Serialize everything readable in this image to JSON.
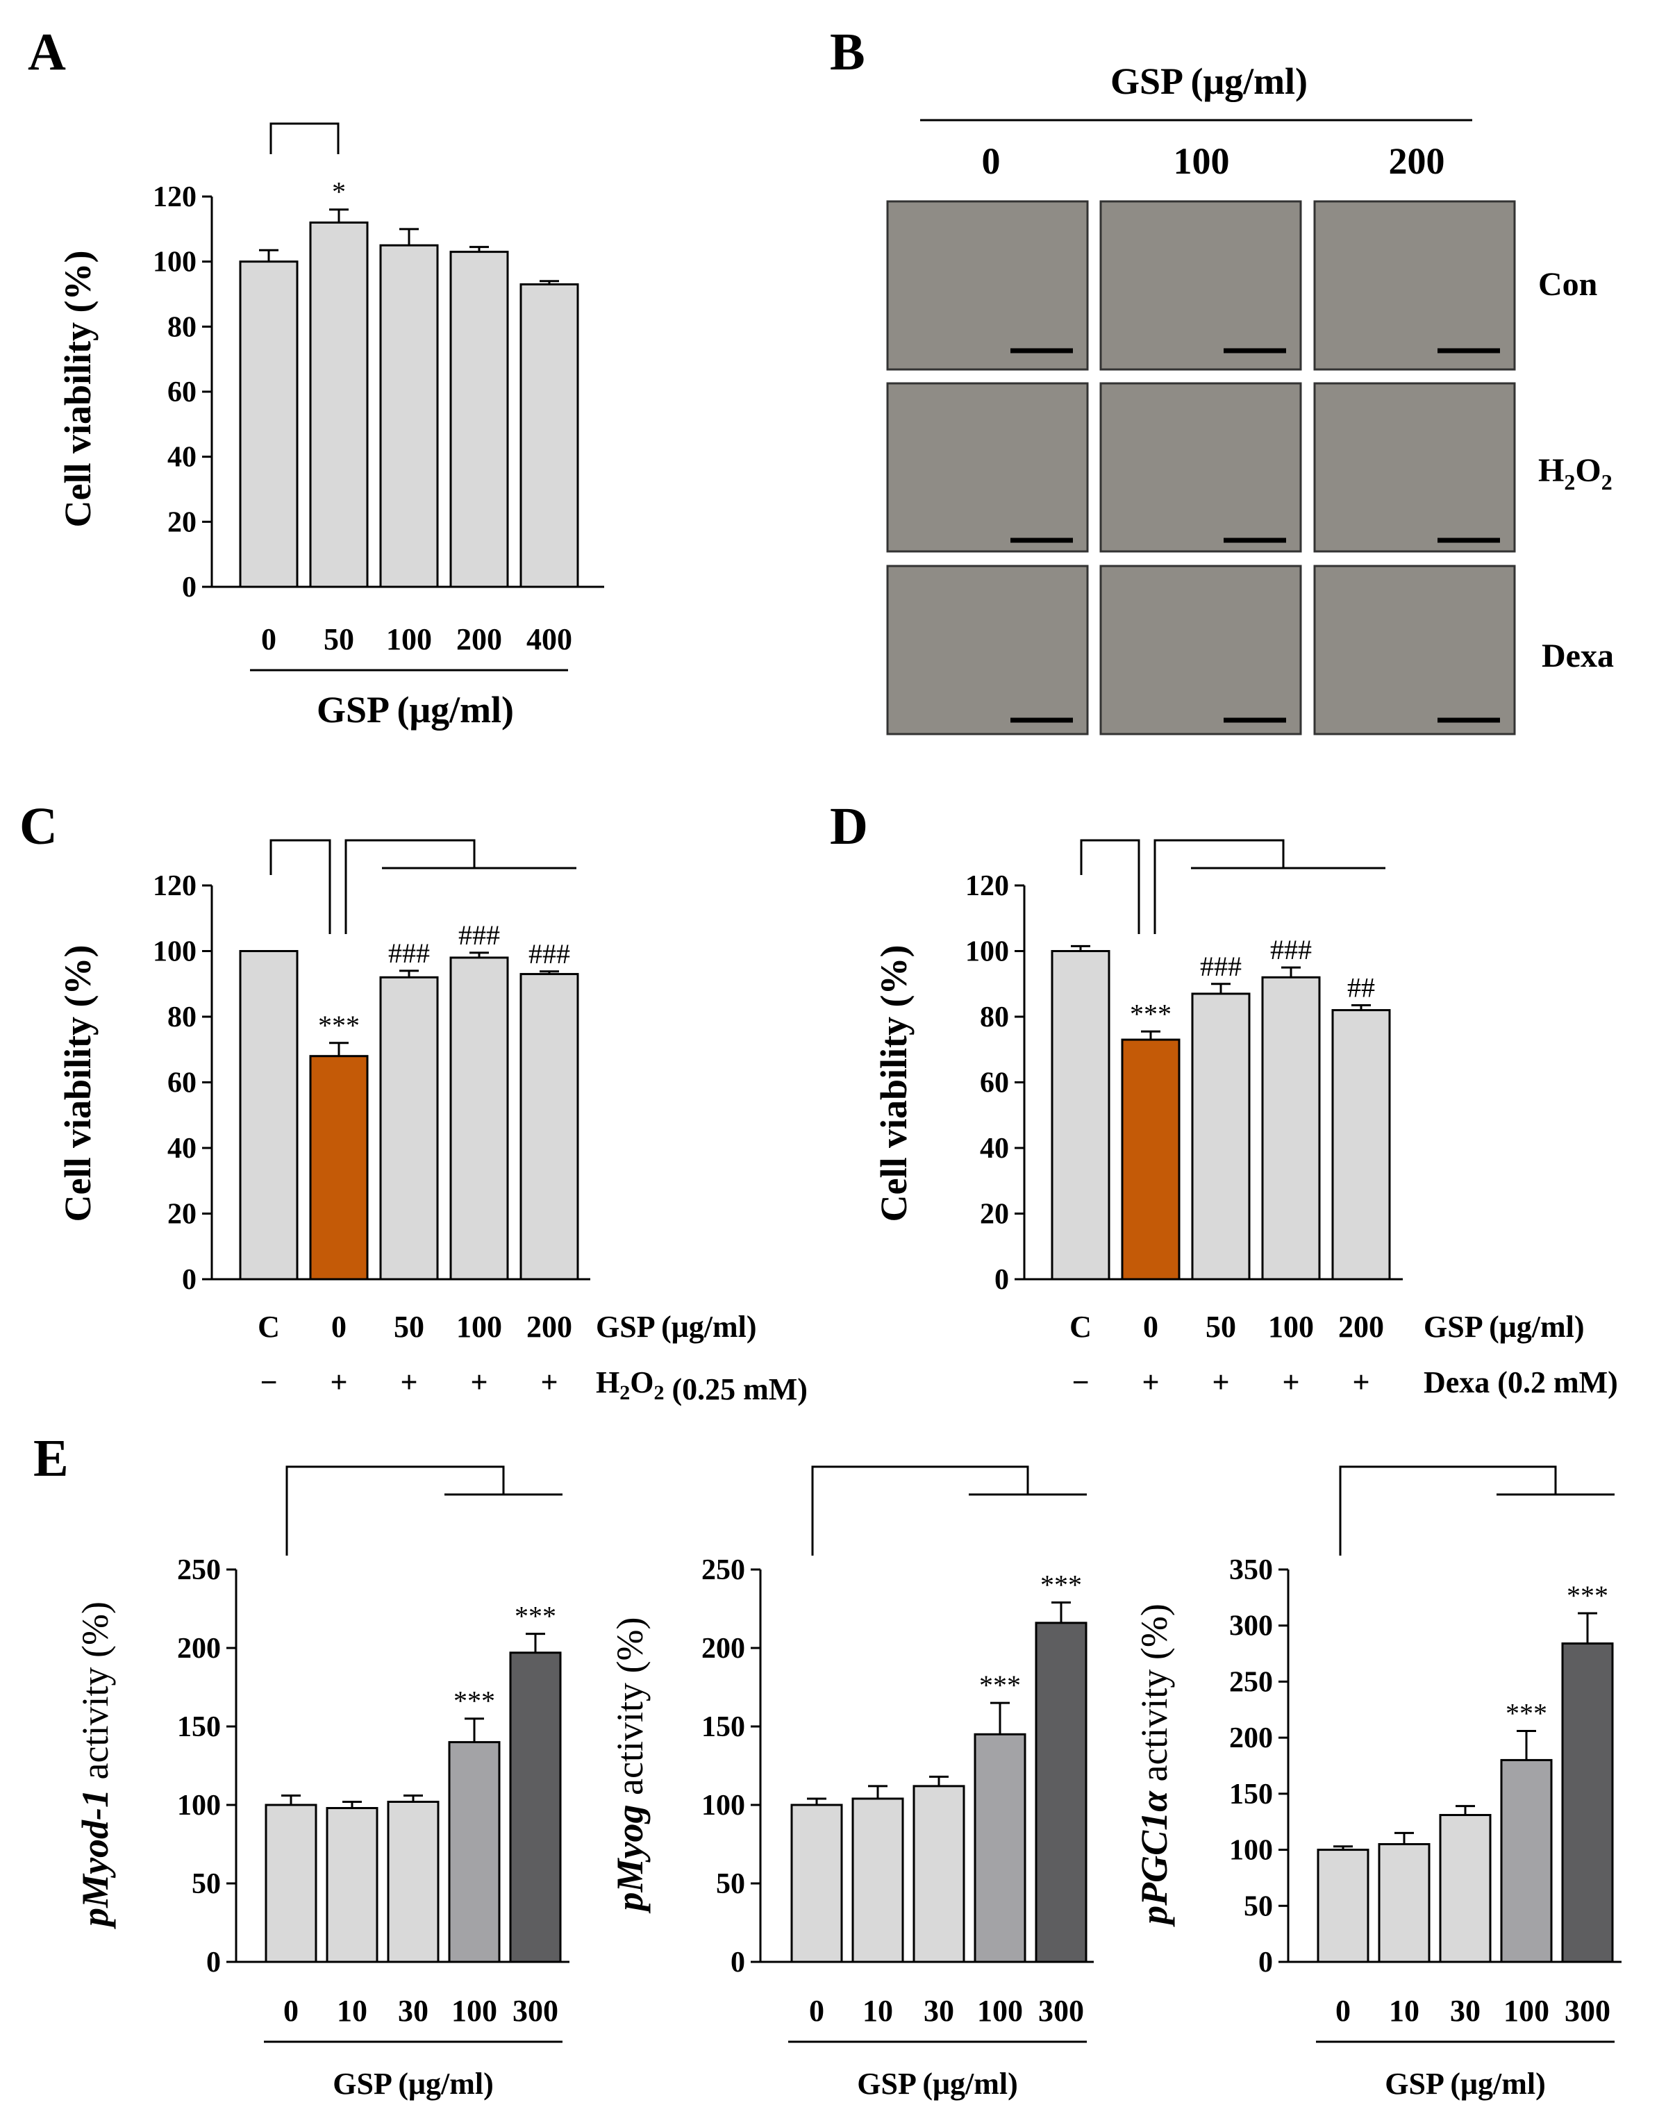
{
  "panel_letters": {
    "A": "A",
    "B": "B",
    "C": "C",
    "D": "D",
    "E": "E"
  },
  "colors": {
    "bar_light": "#d9d9d9",
    "bar_orange": "#c45a07",
    "bar_mid": "#a3a3a6",
    "bar_dark": "#5e5e60",
    "micrograph": "#8f8c86"
  },
  "micrographs": {
    "header": "GSP (μg/ml)",
    "columns": [
      "0",
      "100",
      "200"
    ],
    "rows": [
      "Con",
      "H2O2",
      "Dexa"
    ]
  },
  "chart_data": [
    {
      "id": "A",
      "type": "bar",
      "ylabel": "Cell viability (%)",
      "ylim": [
        0,
        120
      ],
      "yticks": [
        0,
        20,
        40,
        60,
        80,
        100,
        120
      ],
      "categories": [
        "0",
        "50",
        "100",
        "200",
        "400"
      ],
      "values": [
        100,
        112,
        105,
        103,
        93
      ],
      "errors": [
        3.5,
        4,
        5,
        1.5,
        1
      ],
      "colors": [
        "light",
        "light",
        "light",
        "light",
        "light"
      ],
      "significance": [
        "",
        "*",
        "",
        "",
        ""
      ],
      "xgroup_label": "GSP (μg/ml)"
    },
    {
      "id": "C",
      "type": "bar",
      "ylabel": "Cell viability (%)",
      "ylim": [
        0,
        120
      ],
      "yticks": [
        0,
        20,
        40,
        60,
        80,
        100,
        120
      ],
      "categories": [
        "C",
        "0",
        "50",
        "100",
        "200"
      ],
      "values": [
        100,
        68,
        92,
        98,
        93
      ],
      "errors": [
        0,
        4,
        2,
        1.5,
        0.8
      ],
      "colors": [
        "light",
        "orange",
        "light",
        "light",
        "light"
      ],
      "significance": [
        "",
        "***",
        "###",
        "###",
        "###"
      ],
      "row1_label": "GSP (μg/ml)",
      "row2_signs": [
        "−",
        "+",
        "+",
        "+",
        "+"
      ],
      "row2_label": "H2O2 (0.25 mM)"
    },
    {
      "id": "D",
      "type": "bar",
      "ylabel": "Cell viability (%)",
      "ylim": [
        0,
        120
      ],
      "yticks": [
        0,
        20,
        40,
        60,
        80,
        100,
        120
      ],
      "categories": [
        "C",
        "0",
        "50",
        "100",
        "200"
      ],
      "values": [
        100,
        73,
        87,
        92,
        82
      ],
      "errors": [
        1.5,
        2.5,
        3,
        3,
        1.5
      ],
      "colors": [
        "light",
        "orange",
        "light",
        "light",
        "light"
      ],
      "significance": [
        "",
        "***",
        "###",
        "###",
        "##"
      ],
      "row1_label": "GSP (μg/ml)",
      "row2_signs": [
        "−",
        "+",
        "+",
        "+",
        "+"
      ],
      "row2_label": "Dexa (0.2 mM)"
    },
    {
      "id": "E1",
      "type": "bar",
      "ylabel_italic": "pMyod-1",
      "ylabel_rest": " activity (%)",
      "ylim": [
        0,
        250
      ],
      "yticks": [
        0,
        50,
        100,
        150,
        200,
        250
      ],
      "categories": [
        "0",
        "10",
        "30",
        "100",
        "300"
      ],
      "values": [
        100,
        98,
        102,
        140,
        197
      ],
      "errors": [
        6,
        4,
        4,
        15,
        12
      ],
      "colors": [
        "light",
        "light",
        "light",
        "mid",
        "dark"
      ],
      "significance": [
        "",
        "",
        "",
        "***",
        "***"
      ],
      "xgroup_label": "GSP (μg/ml)"
    },
    {
      "id": "E2",
      "type": "bar",
      "ylabel_italic": "pMyog",
      "ylabel_rest": " activity (%)",
      "ylim": [
        0,
        250
      ],
      "yticks": [
        0,
        50,
        100,
        150,
        200,
        250
      ],
      "categories": [
        "0",
        "10",
        "30",
        "100",
        "300"
      ],
      "values": [
        100,
        104,
        112,
        145,
        216
      ],
      "errors": [
        4,
        8,
        6,
        20,
        13
      ],
      "colors": [
        "light",
        "light",
        "light",
        "mid",
        "dark"
      ],
      "significance": [
        "",
        "",
        "",
        "***",
        "***"
      ],
      "xgroup_label": "GSP (μg/ml)"
    },
    {
      "id": "E3",
      "type": "bar",
      "ylabel_italic": "pPGC1α",
      "ylabel_rest": " activity (%)",
      "ylim": [
        0,
        350
      ],
      "yticks": [
        0,
        50,
        100,
        150,
        200,
        250,
        300,
        350
      ],
      "categories": [
        "0",
        "10",
        "30",
        "100",
        "300"
      ],
      "values": [
        100,
        105,
        131,
        180,
        284
      ],
      "errors": [
        3,
        10,
        8,
        26,
        27
      ],
      "colors": [
        "light",
        "light",
        "light",
        "mid",
        "dark"
      ],
      "significance": [
        "",
        "",
        "",
        "***",
        "***"
      ],
      "xgroup_label": "GSP (μg/ml)"
    }
  ]
}
